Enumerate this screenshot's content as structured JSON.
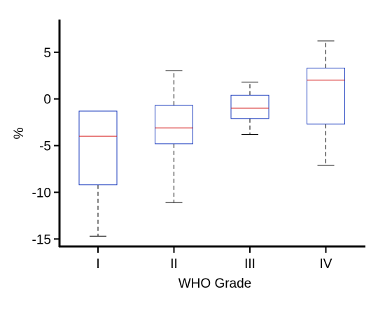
{
  "chart_data": {
    "type": "box",
    "xlabel": "WHO Grade",
    "ylabel": "%",
    "ylim": [
      -15.8,
      8.5
    ],
    "y_ticks": [
      5,
      0,
      -5,
      -10,
      -15
    ],
    "categories": [
      "I",
      "II",
      "III",
      "IV"
    ],
    "boxes": [
      {
        "category": "I",
        "whisker_low": -14.7,
        "q1": -9.2,
        "median": -4.0,
        "q3": -1.3,
        "whisker_high": -1.3
      },
      {
        "category": "II",
        "whisker_low": -11.1,
        "q1": -4.8,
        "median": -3.1,
        "q3": -0.7,
        "whisker_high": 3.0
      },
      {
        "category": "III",
        "whisker_low": -3.8,
        "q1": -2.1,
        "median": -1.0,
        "q3": 0.4,
        "whisker_high": 1.8
      },
      {
        "category": "IV",
        "whisker_low": -7.1,
        "q1": -2.7,
        "median": 2.0,
        "q3": 3.3,
        "whisker_high": 6.2
      }
    ],
    "colors": {
      "box": "#1f3fbf",
      "median": "#d62020",
      "whisker": "#000000",
      "axis": "#000000"
    },
    "grid": false,
    "legend": "none"
  }
}
